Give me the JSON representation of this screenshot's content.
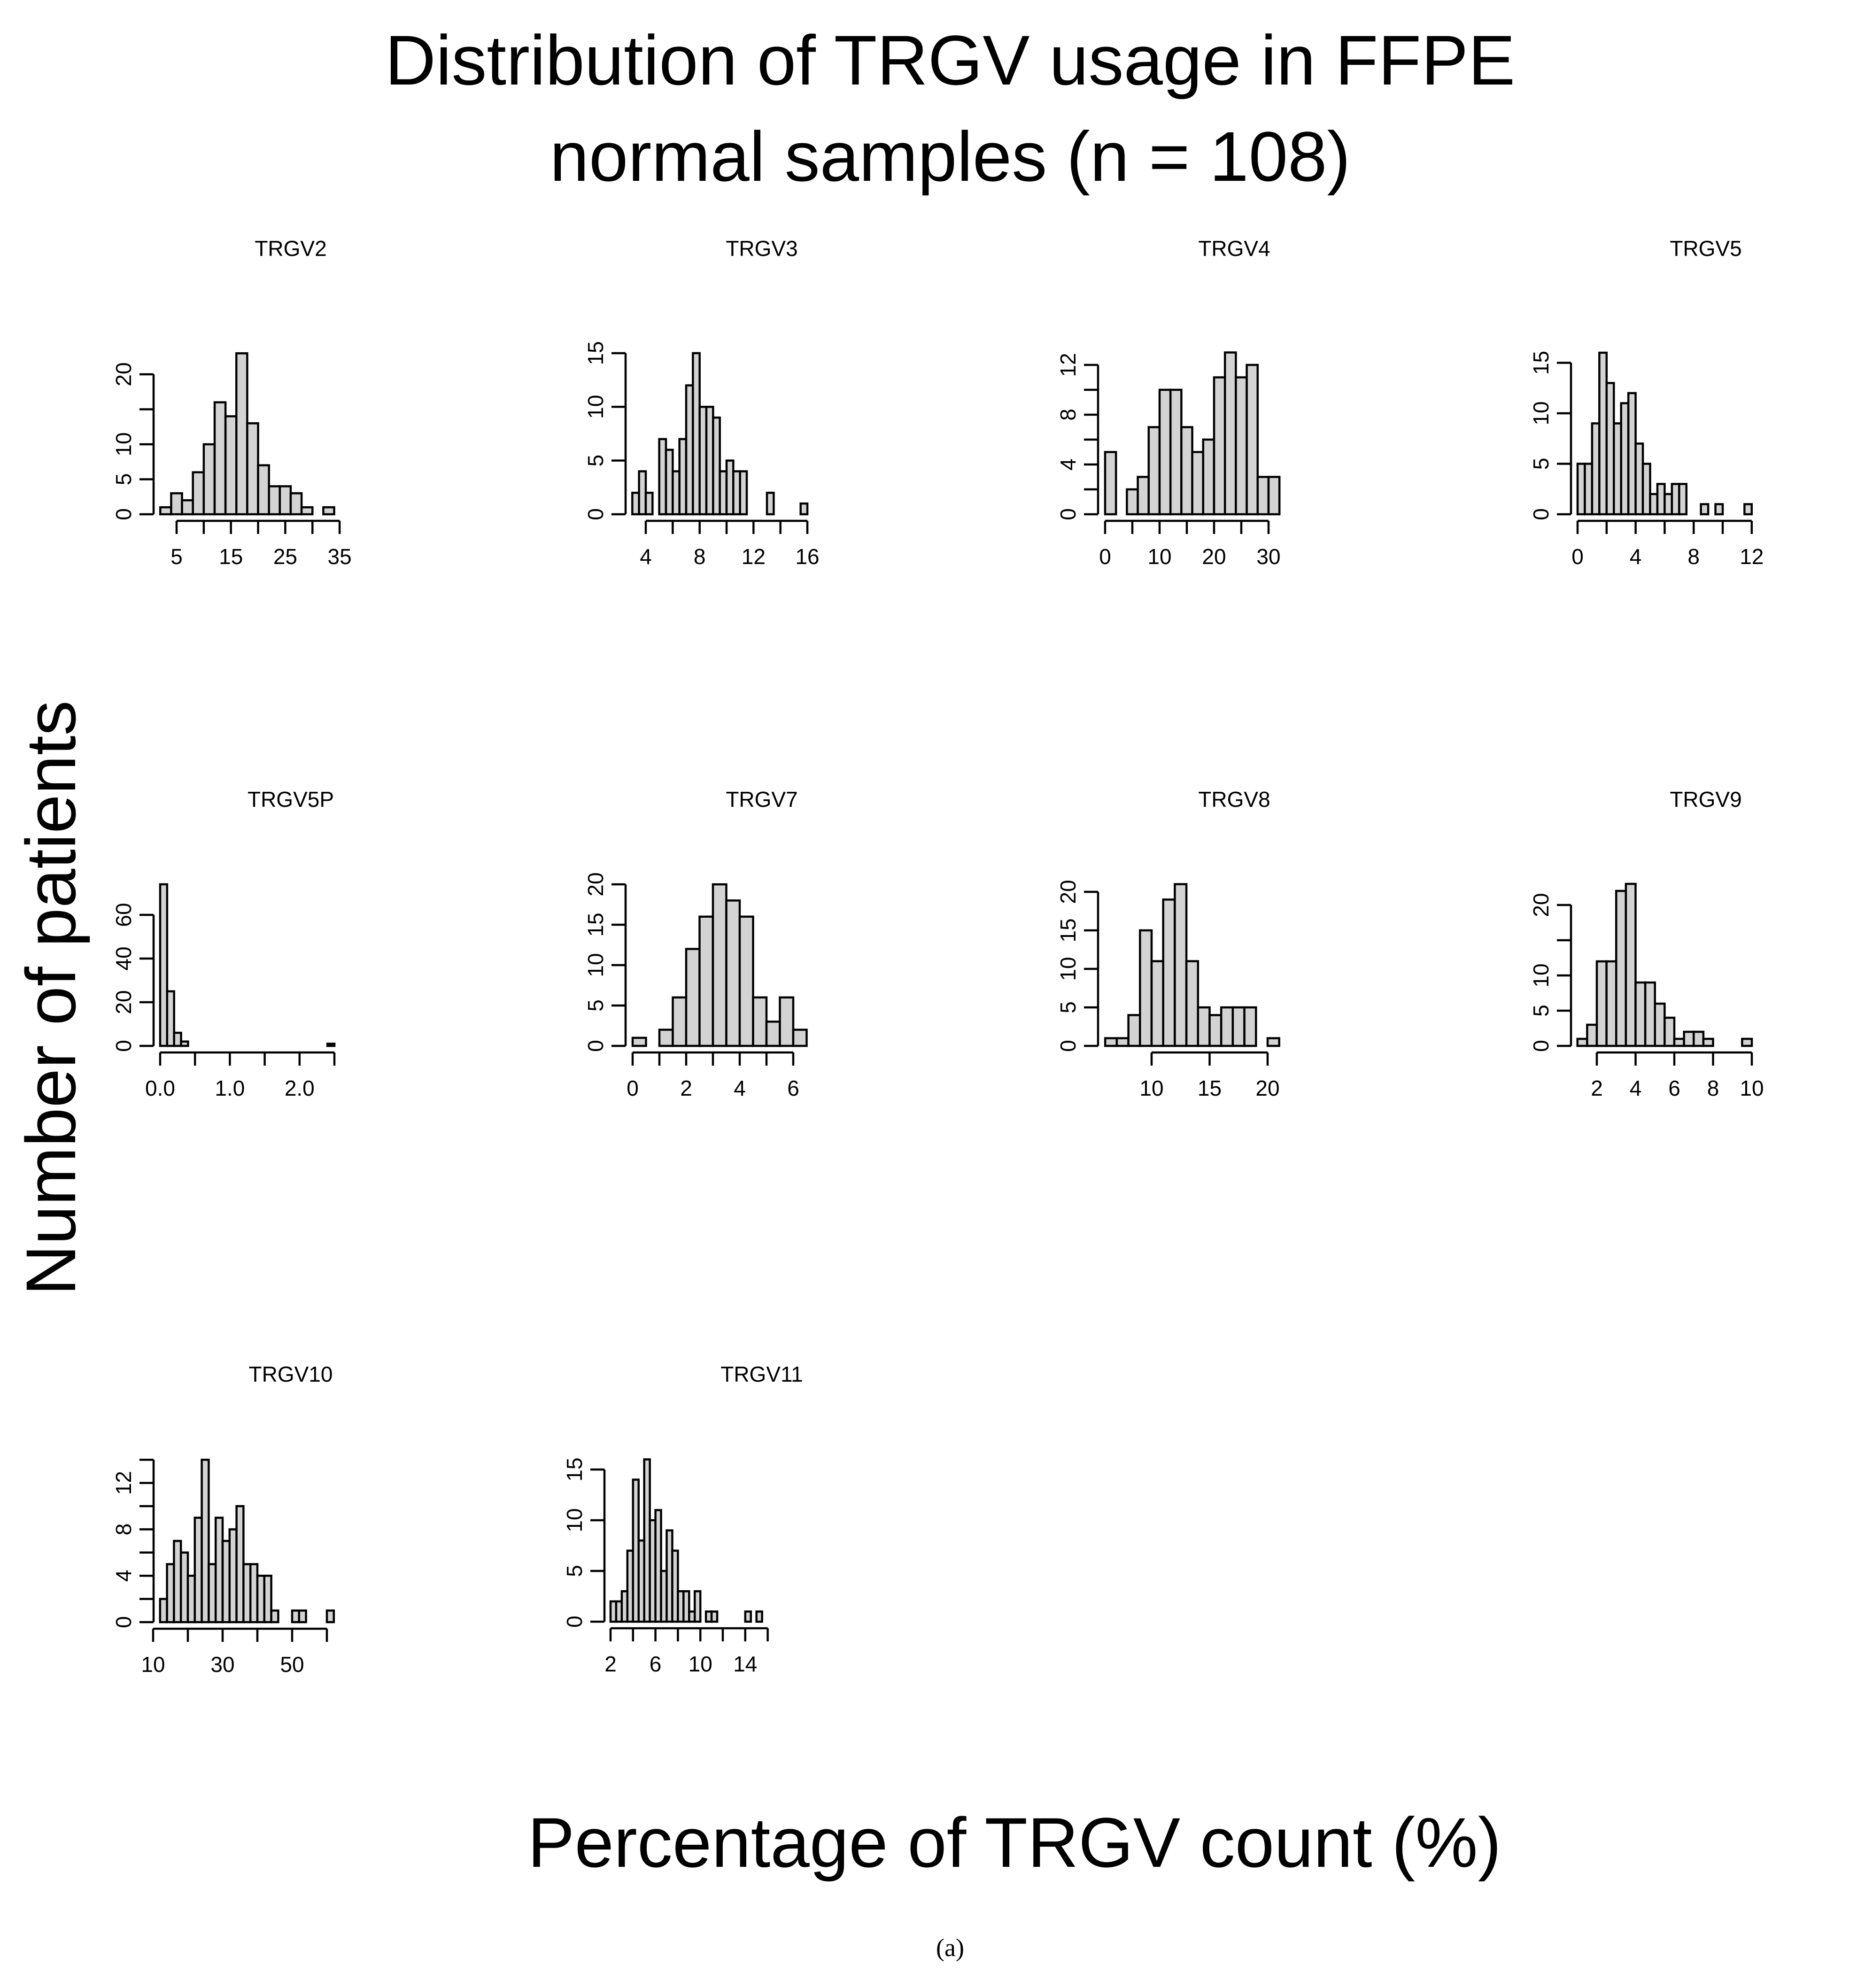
{
  "figure": {
    "title_line1": "Distribution of TRGV usage in FFPE",
    "title_line2": "normal samples (n = 108)",
    "ylabel": "Number of patients",
    "xlabel": "Percentage of TRGV count (%)",
    "caption": "(a)",
    "bar_fill": "#d3d3d3",
    "bar_stroke": "#000000"
  },
  "chart_data": [
    {
      "type": "bar",
      "title": "TRGV2",
      "bin_start": 2,
      "bin_width": 2,
      "counts": [
        1,
        3,
        2,
        6,
        10,
        16,
        14,
        23,
        13,
        7,
        4,
        4,
        3,
        1,
        0,
        1
      ],
      "xticks": [
        5,
        10,
        15,
        20,
        25,
        30,
        35
      ],
      "xtick_labels": [
        "5",
        "15",
        "25",
        "35"
      ],
      "xtick_label_values": [
        5,
        15,
        25,
        35
      ],
      "yticks": [
        0,
        5,
        10,
        15,
        20
      ],
      "ytick_labels": [
        "0",
        "5",
        "10",
        "20"
      ],
      "ytick_label_values": [
        0,
        5,
        10,
        20
      ]
    },
    {
      "type": "bar",
      "title": "TRGV3",
      "bin_start": 3,
      "bin_width": 0.5,
      "counts": [
        2,
        4,
        2,
        0,
        7,
        6,
        4,
        7,
        12,
        15,
        10,
        10,
        9,
        4,
        5,
        4,
        4,
        0,
        0,
        0,
        2,
        0,
        0,
        0,
        0,
        1
      ],
      "xticks": [
        4,
        6,
        8,
        10,
        12,
        14,
        16
      ],
      "xtick_labels": [
        "4",
        "8",
        "12",
        "16"
      ],
      "xtick_label_values": [
        4,
        8,
        12,
        16
      ],
      "yticks": [
        0,
        5,
        10,
        15
      ],
      "ytick_labels": [
        "0",
        "5",
        "10",
        "15"
      ],
      "ytick_label_values": [
        0,
        5,
        10,
        15
      ]
    },
    {
      "type": "bar",
      "title": "TRGV4",
      "bin_start": 0,
      "bin_width": 2,
      "counts": [
        5,
        0,
        2,
        3,
        7,
        10,
        10,
        7,
        5,
        6,
        11,
        13,
        11,
        12,
        3,
        3
      ],
      "xticks": [
        0,
        5,
        10,
        15,
        20,
        25,
        30
      ],
      "xtick_labels": [
        "0",
        "10",
        "20",
        "30"
      ],
      "xtick_label_values": [
        0,
        10,
        20,
        30
      ],
      "yticks": [
        0,
        2,
        4,
        6,
        8,
        10,
        12
      ],
      "ytick_labels": [
        "0",
        "4",
        "8",
        "12"
      ],
      "ytick_label_values": [
        0,
        4,
        8,
        12
      ]
    },
    {
      "type": "bar",
      "title": "TRGV5",
      "bin_start": 0,
      "bin_width": 0.5,
      "counts": [
        5,
        5,
        9,
        16,
        13,
        9,
        11,
        12,
        7,
        5,
        2,
        3,
        2,
        3,
        3,
        0,
        0,
        1,
        0,
        1,
        0,
        0,
        0,
        1
      ],
      "xticks": [
        0,
        2,
        4,
        6,
        8,
        10,
        12
      ],
      "xtick_labels": [
        "0",
        "4",
        "8",
        "12"
      ],
      "xtick_label_values": [
        0,
        4,
        8,
        12
      ],
      "yticks": [
        0,
        5,
        10,
        15
      ],
      "ytick_labels": [
        "0",
        "5",
        "10",
        "15"
      ],
      "ytick_label_values": [
        0,
        5,
        10,
        15
      ]
    },
    {
      "type": "bar",
      "title": "TRGV5P",
      "bin_start": 0,
      "bin_width": 0.1,
      "counts": [
        74,
        25,
        6,
        2,
        0,
        0,
        0,
        0,
        0,
        0,
        0,
        0,
        0,
        0,
        0,
        0,
        0,
        0,
        0,
        0,
        0,
        0,
        0,
        0,
        1
      ],
      "xticks": [
        0,
        0.5,
        1,
        1.5,
        2,
        2.5
      ],
      "xtick_labels": [
        "0.0",
        "1.0",
        "2.0"
      ],
      "xtick_label_values": [
        0,
        1,
        2
      ],
      "yticks": [
        0,
        20,
        40,
        60
      ],
      "ytick_labels": [
        "0",
        "20",
        "40",
        "60"
      ],
      "ytick_label_values": [
        0,
        20,
        40,
        60
      ]
    },
    {
      "type": "bar",
      "title": "TRGV7",
      "bin_start": 0,
      "bin_width": 0.5,
      "counts": [
        1,
        0,
        2,
        6,
        12,
        16,
        20,
        18,
        16,
        6,
        3,
        6,
        2
      ],
      "xticks": [
        0,
        1,
        2,
        3,
        4,
        5,
        6
      ],
      "xtick_labels": [
        "0",
        "2",
        "4",
        "6"
      ],
      "xtick_label_values": [
        0,
        2,
        4,
        6
      ],
      "yticks": [
        0,
        5,
        10,
        15,
        20
      ],
      "ytick_labels": [
        "0",
        "5",
        "10",
        "15",
        "20"
      ],
      "ytick_label_values": [
        0,
        5,
        10,
        15,
        20
      ]
    },
    {
      "type": "bar",
      "title": "TRGV8",
      "bin_start": 6,
      "bin_width": 1,
      "counts": [
        1,
        1,
        4,
        15,
        11,
        19,
        21,
        11,
        5,
        4,
        5,
        5,
        5,
        0,
        1
      ],
      "xticks": [
        10,
        15,
        20
      ],
      "xtick_labels": [
        "10",
        "15",
        "20"
      ],
      "xtick_label_values": [
        10,
        15,
        20
      ],
      "yticks": [
        0,
        5,
        10,
        15,
        20
      ],
      "ytick_labels": [
        "0",
        "5",
        "10",
        "15",
        "20"
      ],
      "ytick_label_values": [
        0,
        5,
        10,
        15,
        20
      ]
    },
    {
      "type": "bar",
      "title": "TRGV9",
      "bin_start": 1,
      "bin_width": 0.5,
      "counts": [
        1,
        3,
        12,
        12,
        22,
        23,
        9,
        9,
        6,
        4,
        1,
        2,
        2,
        1,
        0,
        0,
        0,
        1
      ],
      "xticks": [
        2,
        4,
        6,
        8,
        10
      ],
      "xtick_labels": [
        "2",
        "4",
        "6",
        "8",
        "10"
      ],
      "xtick_label_values": [
        2,
        4,
        6,
        8,
        10
      ],
      "yticks": [
        0,
        5,
        10,
        15,
        20
      ],
      "ytick_labels": [
        "0",
        "5",
        "10",
        "20"
      ],
      "ytick_label_values": [
        0,
        5,
        10,
        20
      ]
    },
    {
      "type": "bar",
      "title": "TRGV10",
      "bin_start": 12,
      "bin_width": 2,
      "counts": [
        2,
        5,
        7,
        6,
        4,
        9,
        14,
        5,
        9,
        7,
        8,
        10,
        5,
        5,
        4,
        4,
        1,
        0,
        0,
        1,
        1,
        0,
        0,
        0,
        1
      ],
      "xticks": [
        10,
        20,
        30,
        40,
        50,
        60
      ],
      "xtick_labels": [
        "10",
        "30",
        "50"
      ],
      "xtick_label_values": [
        10,
        30,
        50
      ],
      "yticks": [
        0,
        2,
        4,
        6,
        8,
        10,
        12,
        14
      ],
      "ytick_labels": [
        "0",
        "4",
        "8",
        "12"
      ],
      "ytick_label_values": [
        0,
        4,
        8,
        12
      ]
    },
    {
      "type": "bar",
      "title": "TRGV11",
      "bin_start": 2,
      "bin_width": 0.5,
      "counts": [
        2,
        2,
        3,
        7,
        14,
        8,
        16,
        10,
        11,
        5,
        9,
        7,
        3,
        3,
        1,
        3,
        0,
        1,
        1,
        0,
        0,
        0,
        0,
        0,
        1,
        0,
        1
      ],
      "xticks": [
        2,
        4,
        6,
        8,
        10,
        12,
        14,
        16
      ],
      "xtick_labels": [
        "2",
        "6",
        "10",
        "14"
      ],
      "xtick_label_values": [
        2,
        6,
        10,
        14
      ],
      "yticks": [
        0,
        5,
        10,
        15
      ],
      "ytick_labels": [
        "0",
        "5",
        "10",
        "15"
      ],
      "ytick_label_values": [
        0,
        5,
        10,
        15
      ]
    }
  ]
}
